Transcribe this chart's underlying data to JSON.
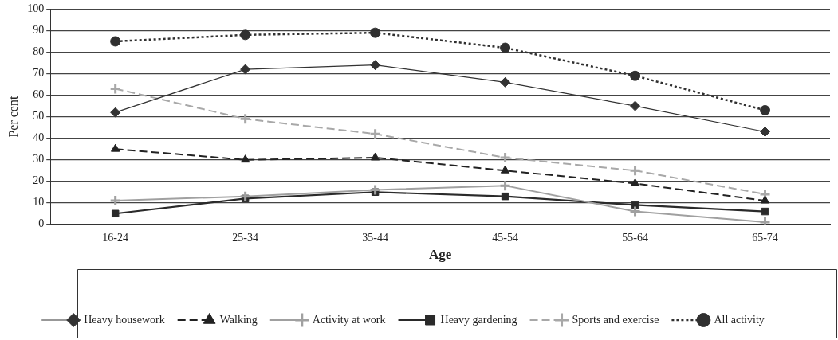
{
  "chart_data": {
    "type": "line",
    "xlabel": "Age",
    "ylabel": "Per cent",
    "categories": [
      "16-24",
      "25-34",
      "35-44",
      "45-54",
      "55-64",
      "65-74"
    ],
    "ylim": [
      0,
      100
    ],
    "yticks": [
      0,
      10,
      20,
      30,
      40,
      50,
      60,
      70,
      80,
      90,
      100
    ],
    "grid": "y",
    "legend": "bottom",
    "series": [
      {
        "name": "Heavy housework",
        "color": "#333333",
        "marker": "diamond",
        "line_style": "solid",
        "values": [
          52,
          72,
          74,
          66,
          55,
          43
        ]
      },
      {
        "name": "Walking",
        "color": "#222222",
        "marker": "triangle",
        "line_style": "dashed",
        "values": [
          35,
          30,
          31,
          25,
          19,
          11
        ]
      },
      {
        "name": "Activity at work",
        "color": "#a0a0a0",
        "marker": "cross",
        "line_style": "solid",
        "values": [
          11,
          13,
          16,
          18,
          6,
          1
        ]
      },
      {
        "name": "Heavy gardening",
        "color": "#2a2a2a",
        "marker": "square",
        "line_style": "solid",
        "values": [
          5,
          12,
          15,
          13,
          9,
          6
        ]
      },
      {
        "name": "Sports and exercise",
        "color": "#a8a8a8",
        "marker": "cross",
        "line_style": "dashed",
        "values": [
          63,
          49,
          42,
          31,
          25,
          14
        ]
      },
      {
        "name": "All activity",
        "color": "#303030",
        "marker": "circle",
        "line_style": "dotted",
        "values": [
          85,
          88,
          89,
          82,
          69,
          53
        ]
      }
    ]
  }
}
